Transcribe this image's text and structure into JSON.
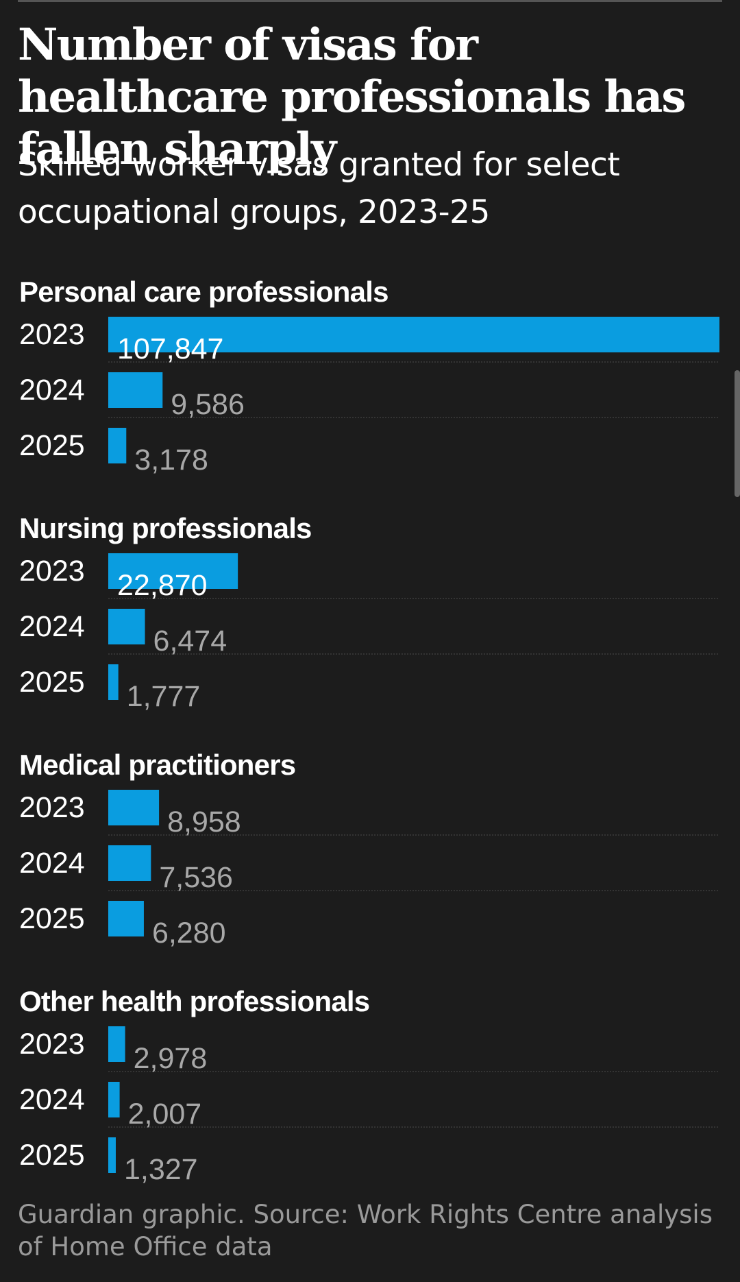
{
  "title": "Number of visas for healthcare professionals has fallen sharply",
  "subtitle": "Skilled worker visas granted for select occupational groups, 2023-25",
  "footer": "Guardian graphic. Source: Work Rights Centre analysis of Home Office data",
  "colors": {
    "bar": "#0a9de0",
    "background": "#1c1c1c",
    "text": "#ffffff",
    "value_label_outside": "#a8a8a8",
    "row_divider": "#3c3c3c"
  },
  "chart_data": {
    "type": "bar",
    "orientation": "horizontal",
    "grouping": "small multiples",
    "xlim": [
      0,
      107847
    ],
    "groups": [
      {
        "name": "Personal care professionals",
        "rows": [
          {
            "year": "2023",
            "value": 107847,
            "label": "107,847"
          },
          {
            "year": "2024",
            "value": 9586,
            "label": "9,586"
          },
          {
            "year": "2025",
            "value": 3178,
            "label": "3,178"
          }
        ]
      },
      {
        "name": "Nursing professionals",
        "rows": [
          {
            "year": "2023",
            "value": 22870,
            "label": "22,870"
          },
          {
            "year": "2024",
            "value": 6474,
            "label": "6,474"
          },
          {
            "year": "2025",
            "value": 1777,
            "label": "1,777"
          }
        ]
      },
      {
        "name": "Medical practitioners",
        "rows": [
          {
            "year": "2023",
            "value": 8958,
            "label": "8,958"
          },
          {
            "year": "2024",
            "value": 7536,
            "label": "7,536"
          },
          {
            "year": "2025",
            "value": 6280,
            "label": "6,280"
          }
        ]
      },
      {
        "name": "Other health professionals",
        "rows": [
          {
            "year": "2023",
            "value": 2978,
            "label": "2,978"
          },
          {
            "year": "2024",
            "value": 2007,
            "label": "2,007"
          },
          {
            "year": "2025",
            "value": 1327,
            "label": "1,327"
          }
        ]
      }
    ]
  }
}
